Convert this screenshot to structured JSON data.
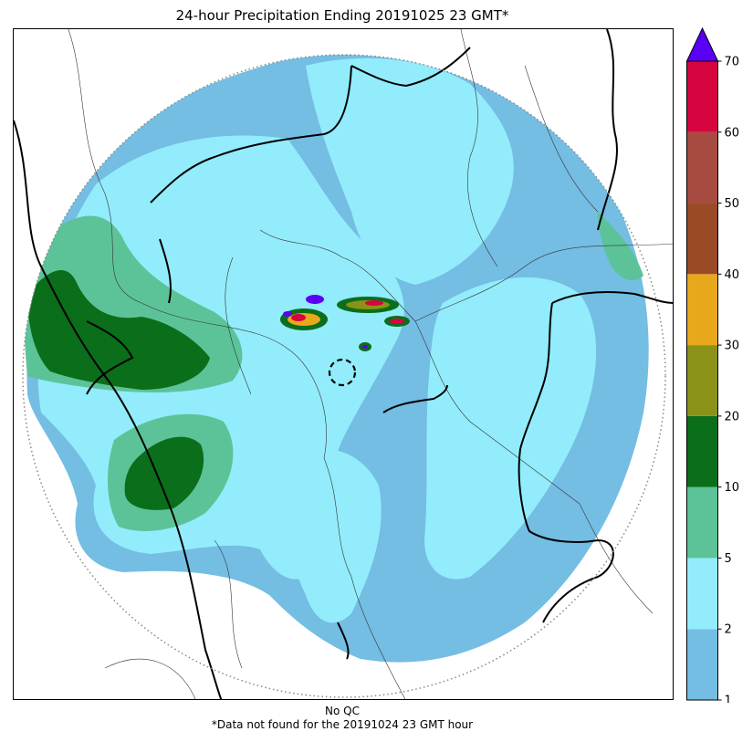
{
  "title": "24-hour Precipitation Ending 20191025 23 GMT*",
  "footer": {
    "qc": "No QC",
    "note": "*Data not found for the 20191024 23 GMT hour"
  },
  "colorbar": {
    "ticks": [
      "1",
      "2",
      "5",
      "10",
      "20",
      "30",
      "40",
      "50",
      "60",
      "70"
    ],
    "bins": [
      {
        "from": 1,
        "to": 2,
        "color": "#74bde3"
      },
      {
        "from": 2,
        "to": 5,
        "color": "#93ecfb"
      },
      {
        "from": 5,
        "to": 10,
        "color": "#5cc399"
      },
      {
        "from": 10,
        "to": 20,
        "color": "#0b6e1a"
      },
      {
        "from": 20,
        "to": 30,
        "color": "#8a9317"
      },
      {
        "from": 30,
        "to": 40,
        "color": "#e7a81b"
      },
      {
        "from": 40,
        "to": 50,
        "color": "#9a4b26"
      },
      {
        "from": 50,
        "to": 60,
        "color": "#a74a42"
      },
      {
        "from": 60,
        "to": 70,
        "color": "#d6043f"
      }
    ],
    "overflow_color": "#5a00f5"
  }
}
